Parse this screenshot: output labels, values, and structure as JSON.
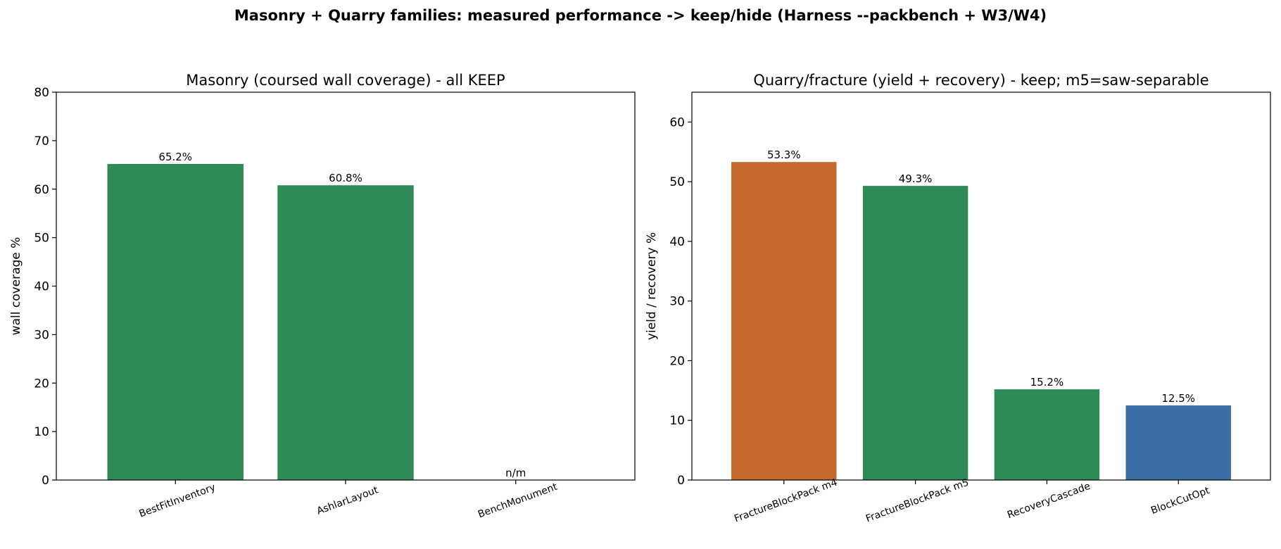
{
  "figure": {
    "suptitle": "Masonry + Quarry families: measured performance -> keep/hide (Harness --packbench + W3/W4)"
  },
  "chart_data": [
    {
      "type": "bar",
      "title": "Masonry (coursed wall coverage) - all KEEP",
      "xlabel": "",
      "ylabel": "wall coverage %",
      "ylim": [
        0,
        80
      ],
      "yticks": [
        0,
        10,
        20,
        30,
        40,
        50,
        60,
        70,
        80
      ],
      "categories": [
        "BestFitInventory",
        "AshlarLayout",
        "BenchMonument"
      ],
      "values": [
        65.2,
        60.8,
        null
      ],
      "data_labels": [
        "65.2%",
        "60.8%",
        "n/m"
      ],
      "colors": [
        "#2e8b57",
        "#2e8b57",
        "#2e8b57"
      ],
      "grid": false
    },
    {
      "type": "bar",
      "title": "Quarry/fracture (yield + recovery) - keep; m5=saw-separable",
      "xlabel": "",
      "ylabel": "yield / recovery %",
      "ylim": [
        0,
        65
      ],
      "yticks": [
        0,
        10,
        20,
        30,
        40,
        50,
        60
      ],
      "categories": [
        "FractureBlockPack m4",
        "FractureBlockPack m5",
        "RecoveryCascade",
        "BlockCutOpt"
      ],
      "values": [
        53.3,
        49.3,
        15.2,
        12.5
      ],
      "data_labels": [
        "53.3%",
        "49.3%",
        "15.2%",
        "12.5%"
      ],
      "colors": [
        "#c46a30",
        "#2e8b57",
        "#2e8b57",
        "#3a6ea5"
      ],
      "grid": false
    }
  ]
}
